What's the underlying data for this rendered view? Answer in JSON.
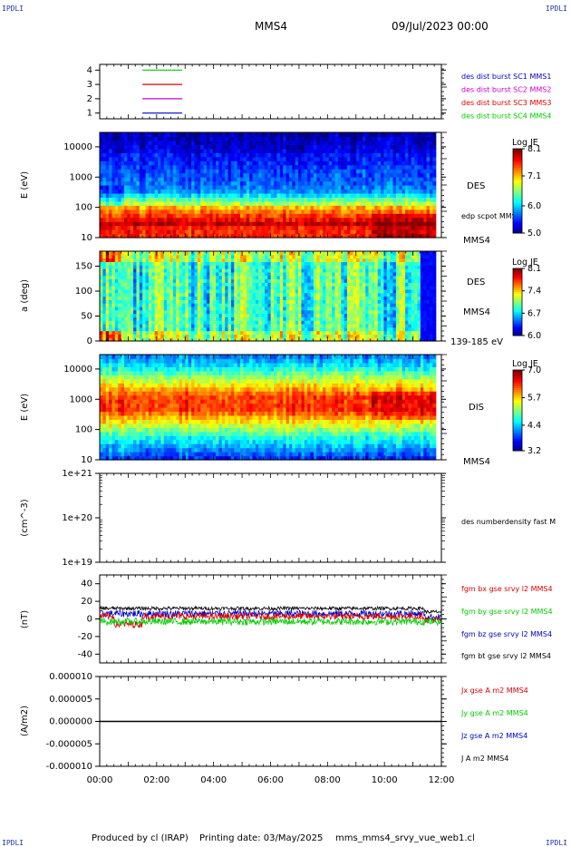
{
  "header": {
    "corner_tl": "IPDLI",
    "corner_tr": "IPDLI",
    "corner_bl": "IPDLI",
    "corner_br": "IPDLI",
    "spacecraft": "MMS4",
    "date": "09/Jul/2023 00:00"
  },
  "footer": {
    "produced": "Produced by cl (IRAP)",
    "printing": "Printing date: 03/May/2025",
    "file": "mms_mms4_srvy_vue_web1.cl"
  },
  "colors": {
    "red": "#dd0000",
    "green": "#00cc00",
    "blue": "#0000cc",
    "magenta": "#cc00cc",
    "black": "#000000"
  },
  "chart_data": [
    {
      "type": "line",
      "id": "availability",
      "yticks": [
        "4",
        "3",
        "2",
        "1"
      ],
      "ylim": [
        0.6,
        4.4
      ],
      "series": [
        {
          "name": "des dist burst SC1 MMS1",
          "color": "#0000cc",
          "level": 1,
          "x": [
            1.5,
            2.9
          ]
        },
        {
          "name": "des dist burst SC2 MMS2",
          "color": "#cc00cc",
          "level": 2,
          "x": [
            1.5,
            2.9
          ]
        },
        {
          "name": "des dist burst SC3 MMS3",
          "color": "#dd0000",
          "level": 3,
          "x": [
            1.5,
            2.9
          ]
        },
        {
          "name": "des dist burst SC4 MMS4",
          "color": "#00cc00",
          "level": 4,
          "x": [
            1.5,
            2.9
          ]
        }
      ]
    },
    {
      "type": "heatmap",
      "id": "des-energy",
      "ylabel": "E (eV)",
      "yscale": "log",
      "ylim": [
        10,
        30000
      ],
      "yticks": [
        "10000",
        "1000",
        "100",
        "10"
      ],
      "right_labels": [
        "DES",
        "edp scpot MMS4",
        "MMS4"
      ],
      "colorbar": {
        "title": "Log JE",
        "ticks": [
          "8.1",
          "7.1",
          "6.0",
          "5.0"
        ],
        "range": [
          5.0,
          8.1
        ]
      },
      "data_end_hour": 11.8
    },
    {
      "type": "heatmap",
      "id": "des-pitch",
      "ylabel": "a (deg)",
      "ylim": [
        0,
        180
      ],
      "yticks": [
        "150",
        "100",
        "50",
        "0"
      ],
      "right_labels": [
        "DES",
        "MMS4",
        "139-185 eV"
      ],
      "colorbar": {
        "title": "Log JE",
        "ticks": [
          "8.1",
          "7.4",
          "6.7",
          "6.0"
        ],
        "range": [
          6.0,
          8.1
        ]
      },
      "data_end_hour": 11.8
    },
    {
      "type": "heatmap",
      "id": "dis-energy",
      "ylabel": "E (eV)",
      "yscale": "log",
      "ylim": [
        10,
        30000
      ],
      "yticks": [
        "10000",
        "1000",
        "100",
        "10"
      ],
      "right_labels": [
        "DIS",
        "MMS4"
      ],
      "colorbar": {
        "title": "Log JE",
        "ticks": [
          "7.0",
          "5.7",
          "4.4",
          "3.2"
        ],
        "range": [
          3.2,
          7.0
        ]
      },
      "data_end_hour": 11.8
    },
    {
      "type": "line",
      "id": "density",
      "ylabel": "(cm^-3)",
      "yscale": "log",
      "yticks": [
        "1e+21",
        "1e+20",
        "1e+19"
      ],
      "series": [
        {
          "name": "des numberdensity fast M",
          "color": "#000000"
        }
      ]
    },
    {
      "type": "line",
      "id": "magnetic-field",
      "ylabel": "(nT)",
      "ylim": [
        -50,
        50
      ],
      "yticks": [
        "40",
        "20",
        "0",
        "-20",
        "-40"
      ],
      "series": [
        {
          "name": "fgm bx gse srvy l2 MMS4",
          "color": "#dd0000",
          "mean": 3,
          "spread": 4
        },
        {
          "name": "fgm by gse srvy l2 MMS4",
          "color": "#00cc00",
          "mean": -3,
          "spread": 4
        },
        {
          "name": "fgm bz gse srvy l2 MMS4",
          "color": "#0000cc",
          "mean": 6,
          "spread": 4
        },
        {
          "name": "fgm bt gse srvy l2 MMS4",
          "color": "#000000",
          "mean": 12,
          "spread": 2
        }
      ]
    },
    {
      "type": "line",
      "id": "current-density",
      "ylabel": "(A/m2)",
      "ylim": [
        -1e-05,
        1e-05
      ],
      "yticks": [
        "0.000010",
        "0.000005",
        "0.000000",
        "-0.000005",
        "-0.000010"
      ],
      "series": [
        {
          "name": "Jx gse A m2 MMS4",
          "color": "#dd0000"
        },
        {
          "name": "Jy gse A m2 MMS4",
          "color": "#00cc00"
        },
        {
          "name": "Jz gse A m2 MMS4",
          "color": "#0000cc"
        },
        {
          "name": "J A m2 MMS4",
          "color": "#000000"
        }
      ]
    }
  ],
  "x_axis": {
    "range": [
      0,
      12
    ],
    "ticks": [
      "00:00",
      "02:00",
      "04:00",
      "06:00",
      "08:00",
      "10:00",
      "12:00"
    ]
  }
}
